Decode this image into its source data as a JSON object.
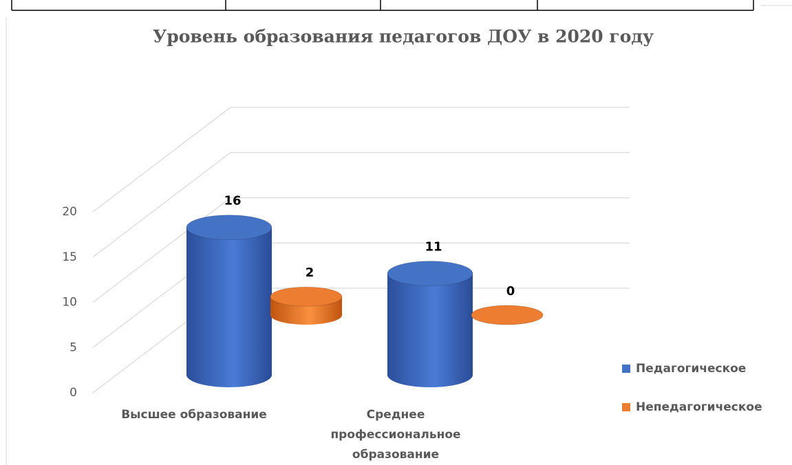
{
  "chart_data": {
    "type": "bar3d",
    "title": "Уровень образования педагогов ДОУ в 2020 году",
    "categories": [
      "Высшее образование",
      "Среднее профессиональное образование"
    ],
    "series": [
      {
        "name": "Педагогическое",
        "color": "#4472c4",
        "values": [
          16,
          11
        ]
      },
      {
        "name": "Непедагогическое",
        "color": "#ed7d31",
        "values": [
          2,
          0
        ]
      }
    ],
    "ylim": [
      0,
      20
    ],
    "yticks": [
      0,
      5,
      10,
      15,
      20
    ],
    "grid": true,
    "legend": "right"
  }
}
